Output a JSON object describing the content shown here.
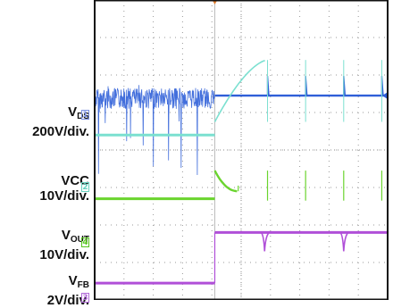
{
  "chart_data": {
    "type": "line",
    "title": "",
    "xlabel": "",
    "ylabel": "",
    "grid": true,
    "grid_divisions": {
      "horizontal": 10,
      "vertical": 8
    },
    "vertical_scale_unit": "div",
    "channels": [
      {
        "id": "1",
        "signal": "V_DS",
        "scale": "200V/div.",
        "color": "#2f5fd8",
        "marker_color": "#7a8fe0"
      },
      {
        "id": "2",
        "signal": "VCC",
        "scale": "10V/div.",
        "color": "#7be0d0",
        "marker_color": "#68d2c0"
      },
      {
        "id": "4",
        "signal": "V_OUT",
        "scale": "10V/div.",
        "color": "#6ad42e",
        "marker_color": "#57c41e"
      },
      {
        "id": "3",
        "signal": "V_FB",
        "scale": "2V/div.",
        "color": "#b04fd8",
        "marker_color": "#b06ad8"
      }
    ],
    "series": [
      {
        "name": "",
        "channel": "1",
        "description_trace": "switching noise before trigger, then flat level with periodic spikes",
        "x": [
          0,
          4.1,
          4.1,
          10
        ],
        "y": [
          2.6,
          2.6,
          2.55,
          2.55
        ],
        "noise_before_trigger": true,
        "spikes_x": [
          5.9,
          7.2,
          8.5,
          9.8
        ]
      },
      {
        "name": "",
        "channel": "2",
        "x": [
          0,
          4.1,
          4.1,
          5.9,
          5.9,
          7.2,
          7.2,
          8.5,
          8.5,
          9.8,
          9.8,
          10
        ],
        "y": [
          3.6,
          3.6,
          3.25,
          1.6,
          3.25,
          1.6,
          3.25,
          1.6,
          3.25,
          1.6,
          3.25,
          3.15
        ]
      },
      {
        "name": "",
        "channel": "4",
        "x": [
          0,
          4.1,
          4.1,
          4.9,
          4.9,
          5.9,
          5.9,
          7.2,
          7.2,
          8.5,
          8.5,
          9.8,
          9.8,
          10
        ],
        "y": [
          5.3,
          5.3,
          4.55,
          5.1,
          4.95,
          5.35,
          4.55,
          5.35,
          4.55,
          5.35,
          4.55,
          5.35,
          4.55,
          5.3
        ]
      },
      {
        "name": "",
        "channel": "3",
        "x": [
          0,
          4.1,
          4.1,
          5.8,
          5.8,
          8.5,
          8.5,
          10
        ],
        "y": [
          7.55,
          7.55,
          6.2,
          6.2,
          6.7,
          6.2,
          6.7,
          6.2
        ],
        "dips_x": [
          5.8,
          8.5
        ]
      }
    ],
    "trigger_x_div": 4.1
  }
}
